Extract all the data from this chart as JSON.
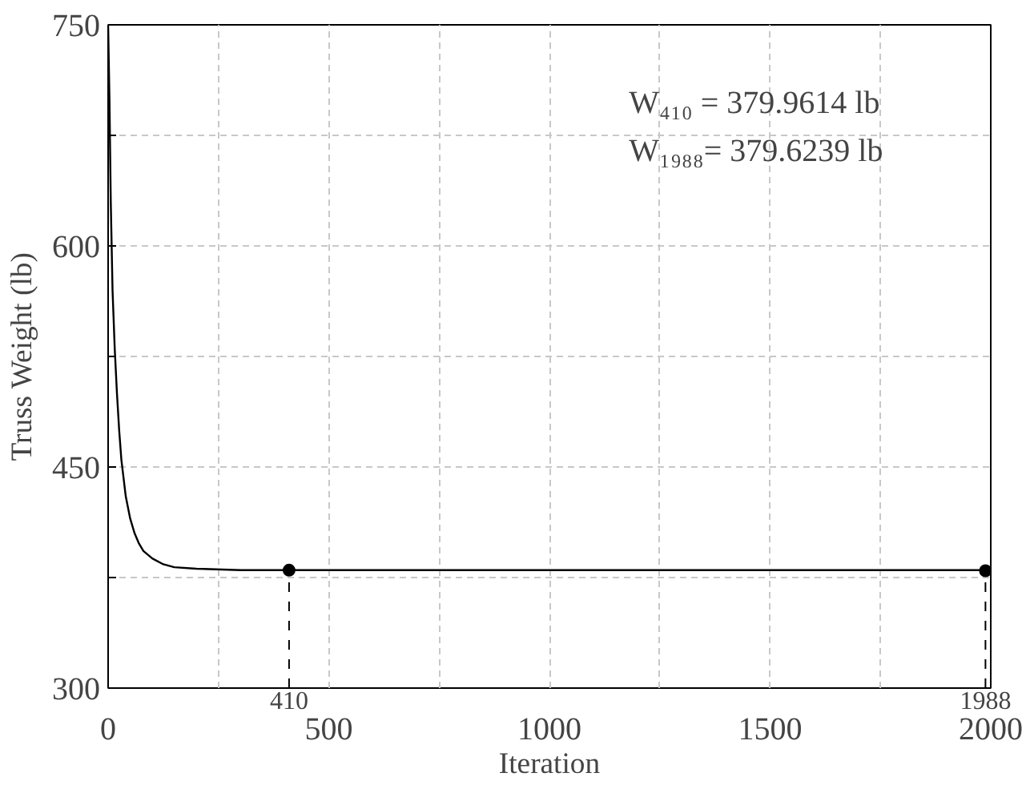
{
  "chart_data": {
    "type": "line",
    "xlabel": "Iteration",
    "ylabel": "Truss Weight (lb)",
    "xlim": [
      0,
      2000
    ],
    "ylim": [
      300,
      750
    ],
    "xticks": [
      0,
      {
        "value": 250,
        "label": null
      },
      500,
      {
        "value": 750,
        "label": null
      },
      1000,
      {
        "value": 1250,
        "label": null
      },
      1500,
      {
        "value": 1750,
        "label": null
      },
      2000
    ],
    "yticks": [
      300,
      {
        "value": 375,
        "label": null
      },
      450,
      {
        "value": 525,
        "label": null
      },
      600,
      {
        "value": 675,
        "label": null
      },
      750
    ],
    "grid": true,
    "line_style": "solid",
    "marker": "none",
    "series": [
      {
        "color": "#000000",
        "x": [
          0,
          3,
          6,
          10,
          15,
          20,
          25,
          30,
          40,
          50,
          60,
          70,
          80,
          100,
          125,
          150,
          200,
          300,
          410,
          1000,
          1988,
          2000
        ],
        "values": [
          750,
          700,
          630,
          570,
          530,
          500,
          475,
          455,
          430,
          415,
          405,
          398,
          393,
          388,
          384,
          382,
          381,
          380,
          380,
          380,
          380,
          380
        ]
      },
      {
        "type": "scatter",
        "marker": "circle",
        "color": "#000000",
        "x": [
          410,
          1988
        ],
        "values": [
          379.9614,
          379.6239
        ]
      }
    ],
    "ref_lines": [
      {
        "axis": "x",
        "value": 410,
        "label": "410",
        "line_style": "dashed"
      },
      {
        "axis": "x",
        "value": 1988,
        "label": "1988",
        "line_style": "dashed"
      }
    ],
    "annotations": [
      "W₄₁₀ = 379.9614 lb",
      "W₁₉₈₈= 379.6239 lb"
    ]
  }
}
